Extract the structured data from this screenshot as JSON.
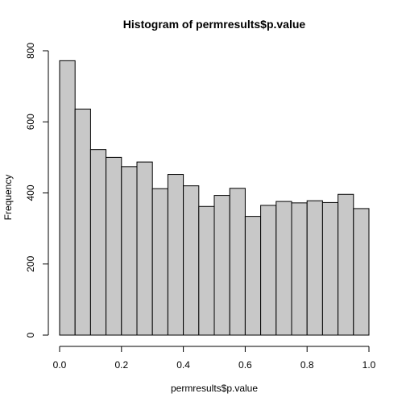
{
  "chart_data": {
    "type": "bar",
    "title": "Histogram of permresults$p.value",
    "xlabel": "permresults$p.value",
    "ylabel": "Frequency",
    "bin_edges": [
      0,
      0.05,
      0.1,
      0.15,
      0.2,
      0.25,
      0.3,
      0.35,
      0.4,
      0.45,
      0.5,
      0.55,
      0.6,
      0.65,
      0.7,
      0.75,
      0.8,
      0.85,
      0.9,
      0.95,
      1.0
    ],
    "values": [
      772,
      636,
      522,
      500,
      474,
      487,
      412,
      452,
      420,
      362,
      393,
      413,
      334,
      365,
      376,
      372,
      378,
      373,
      396,
      356
    ],
    "xlim": [
      0,
      1
    ],
    "ylim": [
      0,
      800
    ],
    "x_ticks": [
      0,
      0.2,
      0.4,
      0.6,
      0.8,
      1
    ],
    "x_tick_labels": [
      "0.0",
      "0.2",
      "0.4",
      "0.6",
      "0.8",
      "1.0"
    ],
    "y_ticks": [
      0,
      200,
      400,
      600,
      800
    ],
    "y_tick_labels": [
      "0",
      "200",
      "400",
      "600",
      "800"
    ],
    "bar_color": "#c8c8c8",
    "grid": false,
    "legend": "none"
  }
}
